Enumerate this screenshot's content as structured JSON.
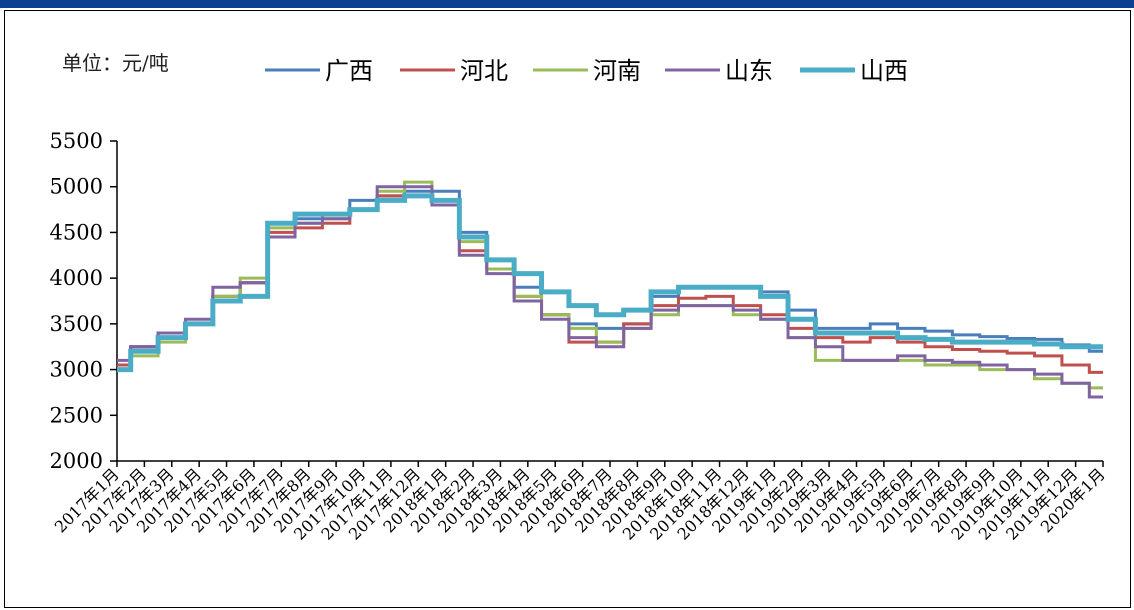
{
  "unit_label": "单位：元/吨",
  "chart_data": {
    "type": "line",
    "title": "",
    "xlabel": "",
    "ylabel": "",
    "ylim": [
      2000,
      5500
    ],
    "yticks": [
      2000,
      2500,
      3000,
      3500,
      4000,
      4500,
      5000,
      5500
    ],
    "legend_position": "top",
    "grid": false,
    "categories": [
      "2017年1月",
      "2017年2月",
      "2017年3月",
      "2017年4月",
      "2017年5月",
      "2017年6月",
      "2017年7月",
      "2017年8月",
      "2017年9月",
      "2017年10月",
      "2017年11月",
      "2017年12月",
      "2018年1月",
      "2018年2月",
      "2018年3月",
      "2018年4月",
      "2018年5月",
      "2018年6月",
      "2018年7月",
      "2018年8月",
      "2018年9月",
      "2018年10月",
      "2018年11月",
      "2018年12月",
      "2019年1月",
      "2019年2月",
      "2019年3月",
      "2019年4月",
      "2019年5月",
      "2019年6月",
      "2019年7月",
      "2019年8月",
      "2019年9月",
      "2019年10月",
      "2019年11月",
      "2019年12月",
      "2020年1月"
    ],
    "series": [
      {
        "name": "广西",
        "color": "#4a7ebb",
        "width": 3,
        "values": [
          3050,
          3250,
          3400,
          3500,
          3800,
          3950,
          4600,
          4650,
          4700,
          4850,
          4900,
          4950,
          4950,
          4500,
          4200,
          3900,
          3600,
          3500,
          3450,
          3500,
          3800,
          3900,
          3900,
          3900,
          3850,
          3650,
          3450,
          3450,
          3500,
          3450,
          3420,
          3380,
          3360,
          3340,
          3330,
          3270,
          3200
        ]
      },
      {
        "name": "河北",
        "color": "#c0504d",
        "width": 3,
        "values": [
          3050,
          3250,
          3350,
          3500,
          3800,
          3950,
          4500,
          4550,
          4600,
          4750,
          4900,
          4900,
          4800,
          4300,
          4100,
          3800,
          3600,
          3300,
          3300,
          3500,
          3700,
          3780,
          3800,
          3700,
          3600,
          3450,
          3350,
          3300,
          3350,
          3300,
          3250,
          3220,
          3200,
          3180,
          3150,
          3050,
          2970
        ]
      },
      {
        "name": "河南",
        "color": "#9bbb59",
        "width": 3,
        "values": [
          3000,
          3150,
          3300,
          3500,
          3800,
          4000,
          4550,
          4600,
          4650,
          4750,
          4950,
          5050,
          4850,
          4400,
          4100,
          3800,
          3600,
          3450,
          3300,
          3450,
          3600,
          3700,
          3700,
          3600,
          3550,
          3350,
          3100,
          3100,
          3100,
          3100,
          3050,
          3050,
          3000,
          3000,
          2900,
          2850,
          2800
        ]
      },
      {
        "name": "山东",
        "color": "#8064a2",
        "width": 3,
        "values": [
          3100,
          3250,
          3400,
          3550,
          3900,
          3950,
          4450,
          4600,
          4650,
          4750,
          5000,
          5000,
          4800,
          4250,
          4050,
          3750,
          3550,
          3350,
          3250,
          3450,
          3650,
          3700,
          3700,
          3650,
          3550,
          3350,
          3250,
          3100,
          3100,
          3150,
          3100,
          3080,
          3050,
          3000,
          2950,
          2850,
          2700
        ]
      },
      {
        "name": "山西",
        "color": "#4bacc6",
        "width": 5,
        "values": [
          3000,
          3200,
          3350,
          3500,
          3750,
          3800,
          4600,
          4700,
          4700,
          4750,
          4850,
          4900,
          4850,
          4450,
          4200,
          4050,
          3850,
          3700,
          3600,
          3650,
          3850,
          3900,
          3900,
          3900,
          3800,
          3550,
          3400,
          3400,
          3400,
          3350,
          3330,
          3300,
          3300,
          3300,
          3280,
          3250,
          3250
        ]
      }
    ]
  }
}
